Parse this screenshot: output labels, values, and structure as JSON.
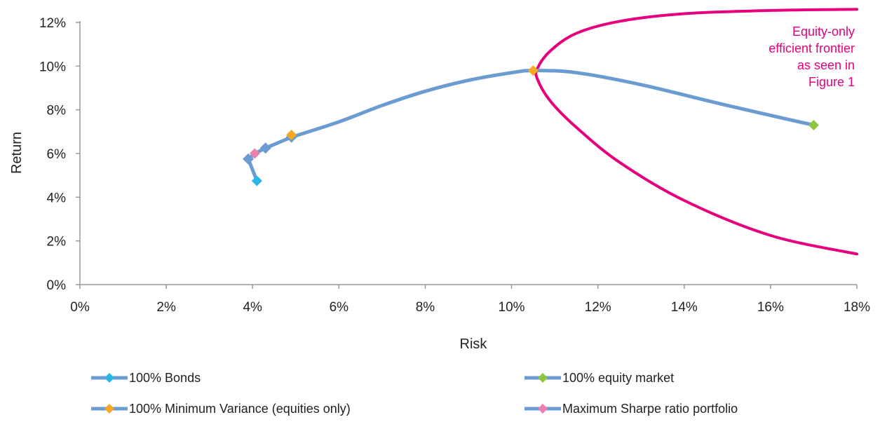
{
  "chart_data": {
    "type": "scatter",
    "xlabel": "Risk",
    "ylabel": "Return",
    "xlim": [
      0,
      18
    ],
    "ylim": [
      0,
      12
    ],
    "x_ticks": [
      "0%",
      "2%",
      "4%",
      "6%",
      "8%",
      "10%",
      "12%",
      "14%",
      "16%",
      "18%"
    ],
    "y_ticks": [
      "0%",
      "2%",
      "4%",
      "6%",
      "8%",
      "10%",
      "12%"
    ],
    "grid": false,
    "legend_position": "bottom",
    "series": [
      {
        "name": "100% Bonds",
        "points": [
          [
            4.1,
            4.75
          ]
        ],
        "color": "#29b6e8"
      },
      {
        "name": "100% equity market",
        "points": [
          [
            17.0,
            7.3
          ]
        ],
        "color": "#8dc63f"
      },
      {
        "name": "100% Minimum Variance (equities only)",
        "points": [
          [
            10.5,
            9.8
          ],
          [
            4.9,
            6.85
          ]
        ],
        "color": "#f7a823"
      },
      {
        "name": "Maximum Sharpe ratio portfolio",
        "points": [
          [
            4.05,
            6.0
          ]
        ],
        "color": "#ec7fb0"
      }
    ],
    "blend_curve": {
      "color": "#6a9bd1",
      "points": [
        [
          4.1,
          4.75
        ],
        [
          3.9,
          5.75
        ],
        [
          4.1,
          6.05
        ],
        [
          4.3,
          6.25
        ],
        [
          4.9,
          6.75
        ],
        [
          6.0,
          7.45
        ],
        [
          7.0,
          8.2
        ],
        [
          8.0,
          8.85
        ],
        [
          9.0,
          9.35
        ],
        [
          10.0,
          9.7
        ],
        [
          10.5,
          9.8
        ],
        [
          11.5,
          9.7
        ],
        [
          13.0,
          9.15
        ],
        [
          15.0,
          8.2
        ],
        [
          17.0,
          7.3
        ]
      ],
      "markers": [
        [
          3.9,
          5.75
        ],
        [
          4.3,
          6.25
        ],
        [
          4.9,
          6.75
        ]
      ]
    },
    "frontier_curve": {
      "color": "#e6007e",
      "label": "Equity-only efficient frontier as seen in Figure 1",
      "points": [
        [
          18.0,
          12.6
        ],
        [
          16.0,
          12.55
        ],
        [
          14.0,
          12.4
        ],
        [
          12.5,
          12.05
        ],
        [
          11.5,
          11.5
        ],
        [
          10.9,
          10.7
        ],
        [
          10.6,
          9.9
        ],
        [
          10.6,
          9.4
        ],
        [
          10.9,
          8.4
        ],
        [
          11.5,
          7.2
        ],
        [
          12.5,
          5.6
        ],
        [
          14.0,
          3.85
        ],
        [
          16.0,
          2.25
        ],
        [
          18.0,
          1.4
        ]
      ]
    },
    "annotation_lines": [
      "Equity-only",
      "efficient frontier",
      "as seen in",
      "Figure 1"
    ]
  }
}
